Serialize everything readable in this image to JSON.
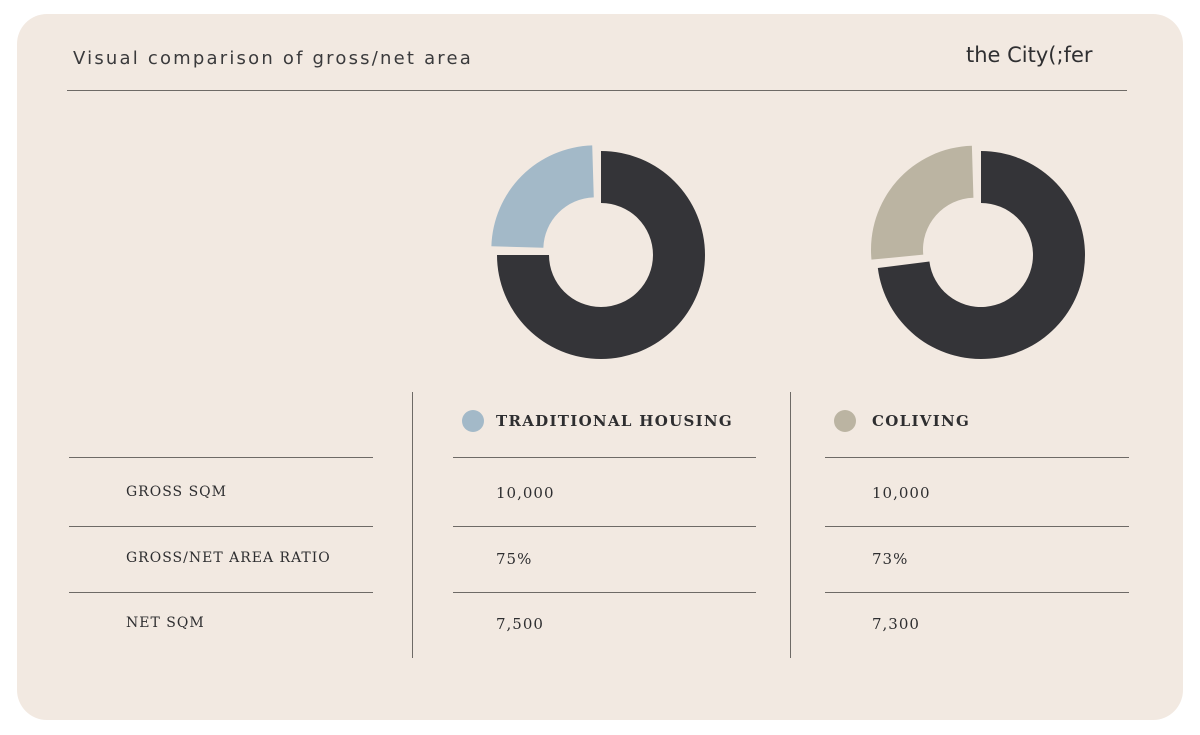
{
  "header": {
    "title": "Visual comparison of gross/net area",
    "brand": "the City(;fer"
  },
  "colors": {
    "background": "#f2e9e1",
    "dark": "#343438",
    "traditional": "#a3b9c8",
    "coliving": "#bbb4a2"
  },
  "chart_data": [
    {
      "type": "pie",
      "title": "",
      "slices": [
        {
          "label": "TRADITIONAL HOUSING",
          "value": 25,
          "color": "#a3b9c8"
        },
        {
          "label": "",
          "value": 75,
          "color": "#343438"
        }
      ]
    },
    {
      "type": "pie",
      "title": "",
      "slices": [
        {
          "label": "COLIVING",
          "value": 27,
          "color": "#bbb4a2"
        },
        {
          "label": "",
          "value": 73,
          "color": "#343438"
        }
      ]
    }
  ],
  "legend": [
    {
      "label": "TRADITIONAL HOUSING",
      "color": "#a3b9c8"
    },
    {
      "label": "COLIVING",
      "color": "#bbb4a2"
    }
  ],
  "table": {
    "rows": [
      {
        "label": "GROSS SQM",
        "traditional": "10,000",
        "coliving": "10,000"
      },
      {
        "label": "GROSS/NET AREA RATIO",
        "traditional": "75%",
        "coliving": "73%"
      },
      {
        "label": "NET SQM",
        "traditional": "7,500",
        "coliving": "7,300"
      }
    ]
  }
}
